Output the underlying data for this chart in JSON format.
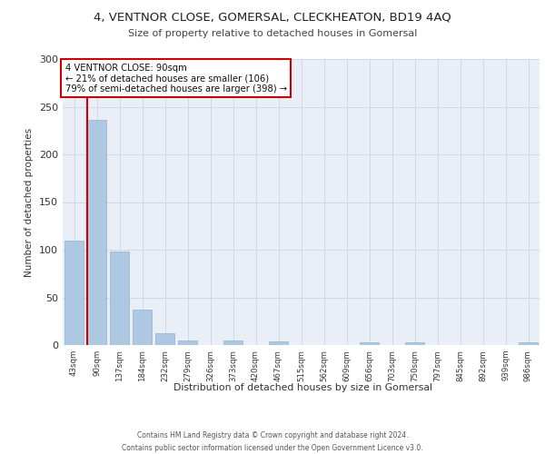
{
  "title1": "4, VENTNOR CLOSE, GOMERSAL, CLECKHEATON, BD19 4AQ",
  "title2": "Size of property relative to detached houses in Gomersal",
  "xlabel": "Distribution of detached houses by size in Gomersal",
  "ylabel": "Number of detached properties",
  "categories": [
    "43sqm",
    "90sqm",
    "137sqm",
    "184sqm",
    "232sqm",
    "279sqm",
    "326sqm",
    "373sqm",
    "420sqm",
    "467sqm",
    "515sqm",
    "562sqm",
    "609sqm",
    "656sqm",
    "703sqm",
    "750sqm",
    "797sqm",
    "845sqm",
    "892sqm",
    "939sqm",
    "986sqm"
  ],
  "values": [
    110,
    236,
    98,
    37,
    12,
    5,
    0,
    5,
    0,
    4,
    0,
    0,
    0,
    3,
    0,
    3,
    0,
    0,
    0,
    0,
    3
  ],
  "bar_color": "#adc8e0",
  "bar_edge_color": "#8ab4d0",
  "highlight_bar_index": 1,
  "highlight_line_color": "#cc0000",
  "ylim": [
    0,
    300
  ],
  "yticks": [
    0,
    50,
    100,
    150,
    200,
    250,
    300
  ],
  "annotation_title": "4 VENTNOR CLOSE: 90sqm",
  "annotation_line1": "← 21% of detached houses are smaller (106)",
  "annotation_line2": "79% of semi-detached houses are larger (398) →",
  "annotation_box_color": "#ffffff",
  "annotation_box_edge_color": "#cc0000",
  "grid_color": "#cdd8e8",
  "background_color": "#eaeff7",
  "footer1": "Contains HM Land Registry data © Crown copyright and database right 2024.",
  "footer2": "Contains public sector information licensed under the Open Government Licence v3.0."
}
